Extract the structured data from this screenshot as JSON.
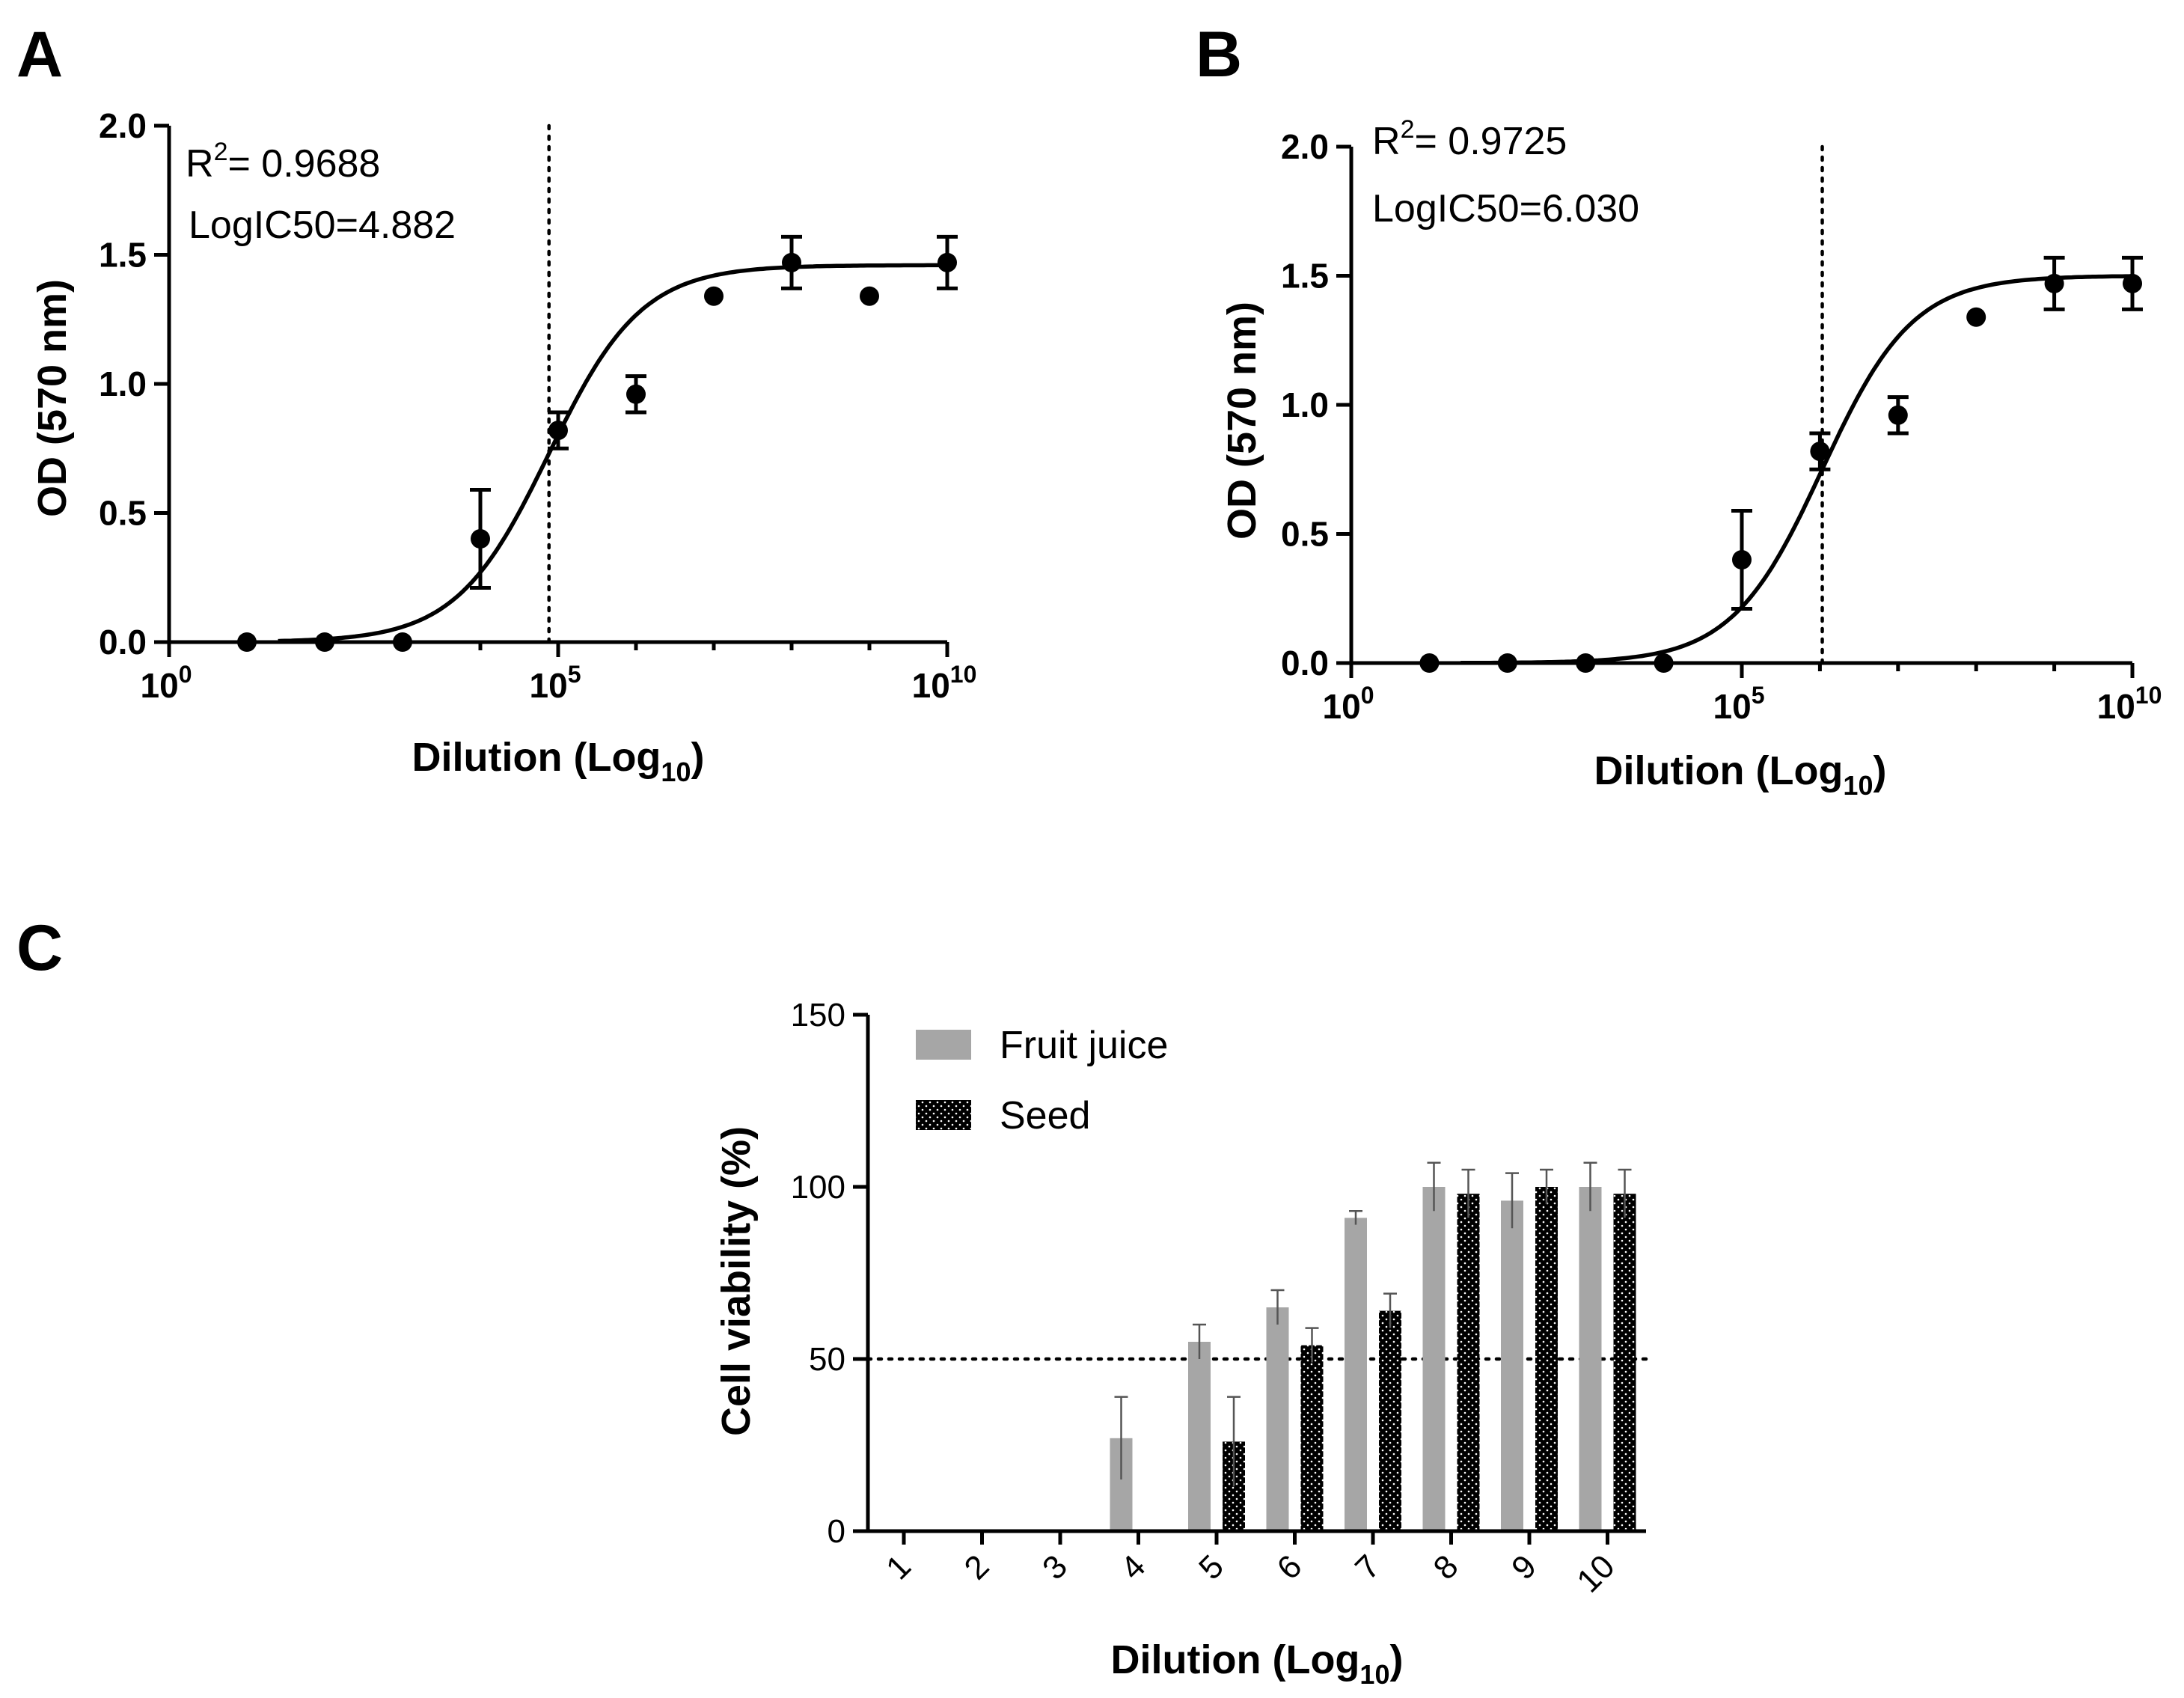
{
  "panels": {
    "a": {
      "letter": "A",
      "annotation_r2": "R",
      "annotation_r2_sup": "2",
      "annotation_r2_value": "= 0.9688",
      "annotation_ic50": "LogIC50=4.882",
      "ylabel": "OD (570 nm)",
      "xlabel_main": "Dilution (Log",
      "xlabel_sub": "10",
      "xlabel_end": ")"
    },
    "b": {
      "letter": "B",
      "annotation_r2": "R",
      "annotation_r2_sup": "2",
      "annotation_r2_value": "= 0.9725",
      "annotation_ic50": "LogIC50=6.030",
      "ylabel": "OD (570 nm)",
      "xlabel_main": "Dilution (Log",
      "xlabel_sub": "10",
      "xlabel_end": ")"
    },
    "c": {
      "letter": "C",
      "ylabel": "Cell viability (%)",
      "xlabel_main": "Dilution (Log",
      "xlabel_sub": "10",
      "xlabel_end": ")",
      "legend_fruit": "Fruit juice",
      "legend_seed": "Seed"
    }
  },
  "chart_data": [
    {
      "id": "A",
      "type": "scatter",
      "xscale": "log10",
      "xlim": [
        0,
        10
      ],
      "xtick_exponents": [
        0,
        5,
        10
      ],
      "xtick_base": "10",
      "ylim": [
        0,
        2.0
      ],
      "yticks": [
        "0.0",
        "0.5",
        "1.0",
        "1.5",
        "2.0"
      ],
      "points": [
        {
          "x": 1,
          "y": 0.0,
          "err": 0
        },
        {
          "x": 2,
          "y": 0.0,
          "err": 0
        },
        {
          "x": 3,
          "y": 0.0,
          "err": 0
        },
        {
          "x": 4,
          "y": 0.4,
          "err": 0.19
        },
        {
          "x": 5,
          "y": 0.82,
          "err": 0.07
        },
        {
          "x": 6,
          "y": 0.96,
          "err": 0.07
        },
        {
          "x": 7,
          "y": 1.34,
          "err": 0
        },
        {
          "x": 8,
          "y": 1.47,
          "err": 0.1
        },
        {
          "x": 9,
          "y": 1.34,
          "err": 0
        },
        {
          "x": 10,
          "y": 1.47,
          "err": 0.1
        }
      ],
      "fit": {
        "bottom": 0.0,
        "top": 1.46,
        "logIC50": 4.882,
        "hill": 0.73,
        "r2": 0.9688
      },
      "refline_x": 4.882
    },
    {
      "id": "B",
      "type": "scatter",
      "xscale": "log10",
      "xlim": [
        0,
        10
      ],
      "xtick_exponents": [
        0,
        5,
        10
      ],
      "xtick_base": "10",
      "ylim": [
        0,
        2.0
      ],
      "yticks": [
        "0.0",
        "0.5",
        "1.0",
        "1.5",
        "2.0"
      ],
      "points": [
        {
          "x": 1,
          "y": 0.0,
          "err": 0
        },
        {
          "x": 2,
          "y": 0.0,
          "err": 0
        },
        {
          "x": 3,
          "y": 0.0,
          "err": 0
        },
        {
          "x": 4,
          "y": 0.0,
          "err": 0
        },
        {
          "x": 5,
          "y": 0.4,
          "err": 0.19
        },
        {
          "x": 6,
          "y": 0.82,
          "err": 0.07
        },
        {
          "x": 7,
          "y": 0.96,
          "err": 0.07
        },
        {
          "x": 8,
          "y": 1.34,
          "err": 0
        },
        {
          "x": 9,
          "y": 1.47,
          "err": 0.1
        },
        {
          "x": 10,
          "y": 1.47,
          "err": 0.1
        }
      ],
      "fit": {
        "bottom": 0.0,
        "top": 1.5,
        "logIC50": 6.03,
        "hill": 0.75,
        "r2": 0.9725
      },
      "refline_x": 6.03
    },
    {
      "id": "C",
      "type": "bar",
      "categories": [
        "1",
        "2",
        "3",
        "4",
        "5",
        "6",
        "7",
        "8",
        "9",
        "10"
      ],
      "ylim": [
        0,
        150
      ],
      "yticks": [
        "0",
        "50",
        "100",
        "150"
      ],
      "refline_y": 50,
      "legend_position": "top-left",
      "series": [
        {
          "name": "Fruit juice",
          "color": "#a6a6a6",
          "values": [
            0,
            0,
            0,
            27,
            55,
            65,
            91,
            100,
            96,
            100
          ],
          "errors": [
            0,
            0,
            0,
            12,
            5,
            5,
            2,
            7,
            8,
            7
          ]
        },
        {
          "name": "Seed",
          "color": "#000000",
          "pattern": "dotted",
          "values": [
            0,
            0,
            0,
            0,
            26,
            54,
            64,
            98,
            100,
            98
          ],
          "errors": [
            0,
            0,
            0,
            0,
            13,
            5,
            5,
            7,
            5,
            7
          ]
        }
      ]
    }
  ]
}
